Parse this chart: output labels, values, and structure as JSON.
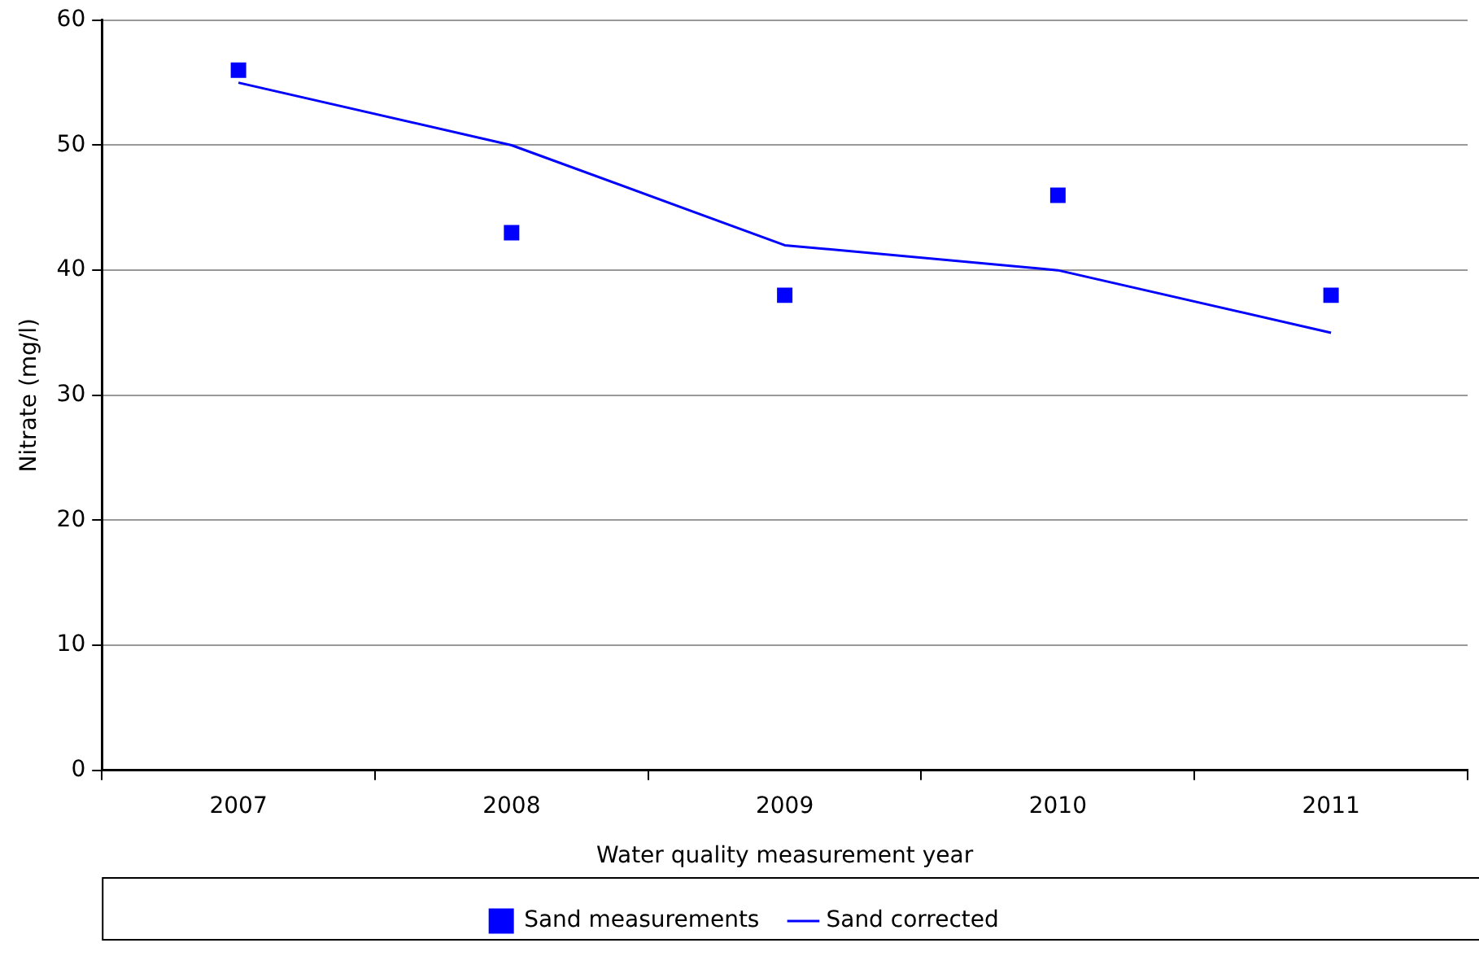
{
  "chart_data": {
    "type": "line",
    "xlabel": "Water quality measurement year",
    "ylabel": "Nitrate (mg/l)",
    "categories": [
      "2007",
      "2008",
      "2009",
      "2010",
      "2011"
    ],
    "ylim": [
      0,
      60
    ],
    "yticks": [
      0,
      10,
      20,
      30,
      40,
      50,
      60
    ],
    "grid": "y",
    "legend": "bottom",
    "series": [
      {
        "name": "Sand measurements",
        "type": "scatter",
        "color": "#0000ff",
        "marker": "square",
        "values": [
          56,
          43,
          38,
          46,
          38
        ]
      },
      {
        "name": "Sand corrected",
        "color": "#0000ff",
        "marker": "none",
        "line_style": "solid",
        "values": [
          55,
          50,
          42,
          40,
          35
        ]
      }
    ]
  }
}
